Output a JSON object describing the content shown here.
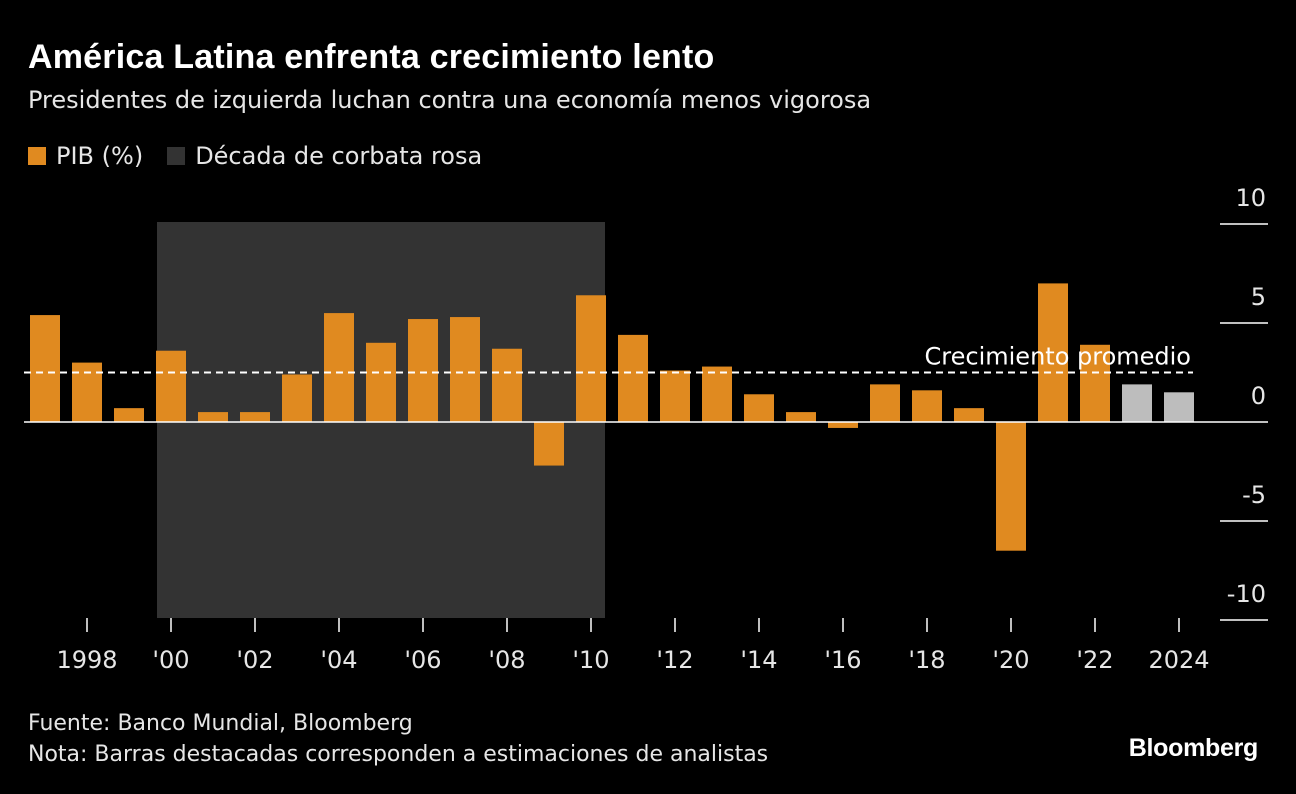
{
  "title": "América Latina enfrenta crecimiento lento",
  "subtitle": "Presidentes de izquierda luchan contra una economía menos vigorosa",
  "legend": [
    {
      "label": "PIB (%)",
      "color": "#e08a20"
    },
    {
      "label": "Década de corbata rosa",
      "color": "#333333"
    }
  ],
  "footer": {
    "source": "Fuente: Banco Mundial, Bloomberg",
    "note": "Nota: Barras destacadas corresponden a estimaciones de analistas"
  },
  "brand": "Bloomberg",
  "chart_data": {
    "type": "bar",
    "title": "América Latina enfrenta crecimiento lento",
    "ylabel": "PIB (%)",
    "xlabel": "",
    "ylim": [
      -10,
      10
    ],
    "y_ticks": [
      "10",
      "5",
      "0",
      "-5",
      "-10"
    ],
    "y_tick_values": [
      10,
      5,
      0,
      -5,
      -10
    ],
    "categories": [
      "1997",
      "1998",
      "1999",
      "2000",
      "2001",
      "2002",
      "2003",
      "2004",
      "2005",
      "2006",
      "2007",
      "2008",
      "2009",
      "2010",
      "2011",
      "2012",
      "2013",
      "2014",
      "2015",
      "2016",
      "2017",
      "2018",
      "2019",
      "2020",
      "2021",
      "2022",
      "2023",
      "2024"
    ],
    "values": [
      5.4,
      3.0,
      0.7,
      3.6,
      0.5,
      0.5,
      2.4,
      5.5,
      4.0,
      5.2,
      5.3,
      3.7,
      -2.2,
      6.4,
      4.4,
      2.6,
      2.8,
      1.4,
      0.5,
      -0.3,
      1.9,
      1.6,
      0.7,
      -6.5,
      7.0,
      3.9,
      1.9,
      1.5
    ],
    "estimate_flags": [
      false,
      false,
      false,
      false,
      false,
      false,
      false,
      false,
      false,
      false,
      false,
      false,
      false,
      false,
      false,
      false,
      false,
      false,
      false,
      false,
      false,
      false,
      false,
      false,
      false,
      false,
      true,
      true
    ],
    "x_tick_years": [
      "1998",
      "2000",
      "2002",
      "2004",
      "2006",
      "2008",
      "2010",
      "2012",
      "2014",
      "2016",
      "2018",
      "2020",
      "2022",
      "2024"
    ],
    "x_tick_labels": [
      "1998",
      "'00",
      "'02",
      "'04",
      "'06",
      "'08",
      "'10",
      "'12",
      "'14",
      "'16",
      "'18",
      "'20",
      "'22",
      "2024"
    ],
    "shaded_range": {
      "start": "2000",
      "end": "2010",
      "label": "Década de corbata rosa"
    },
    "reference_line": {
      "value": 2.5,
      "label": "Crecimiento promedio"
    },
    "colors": {
      "bar": "#e08a20",
      "estimate": "#bdbdbd",
      "shade": "#333333",
      "axis": "#ffffff",
      "text": "#e6e6e6"
    }
  }
}
